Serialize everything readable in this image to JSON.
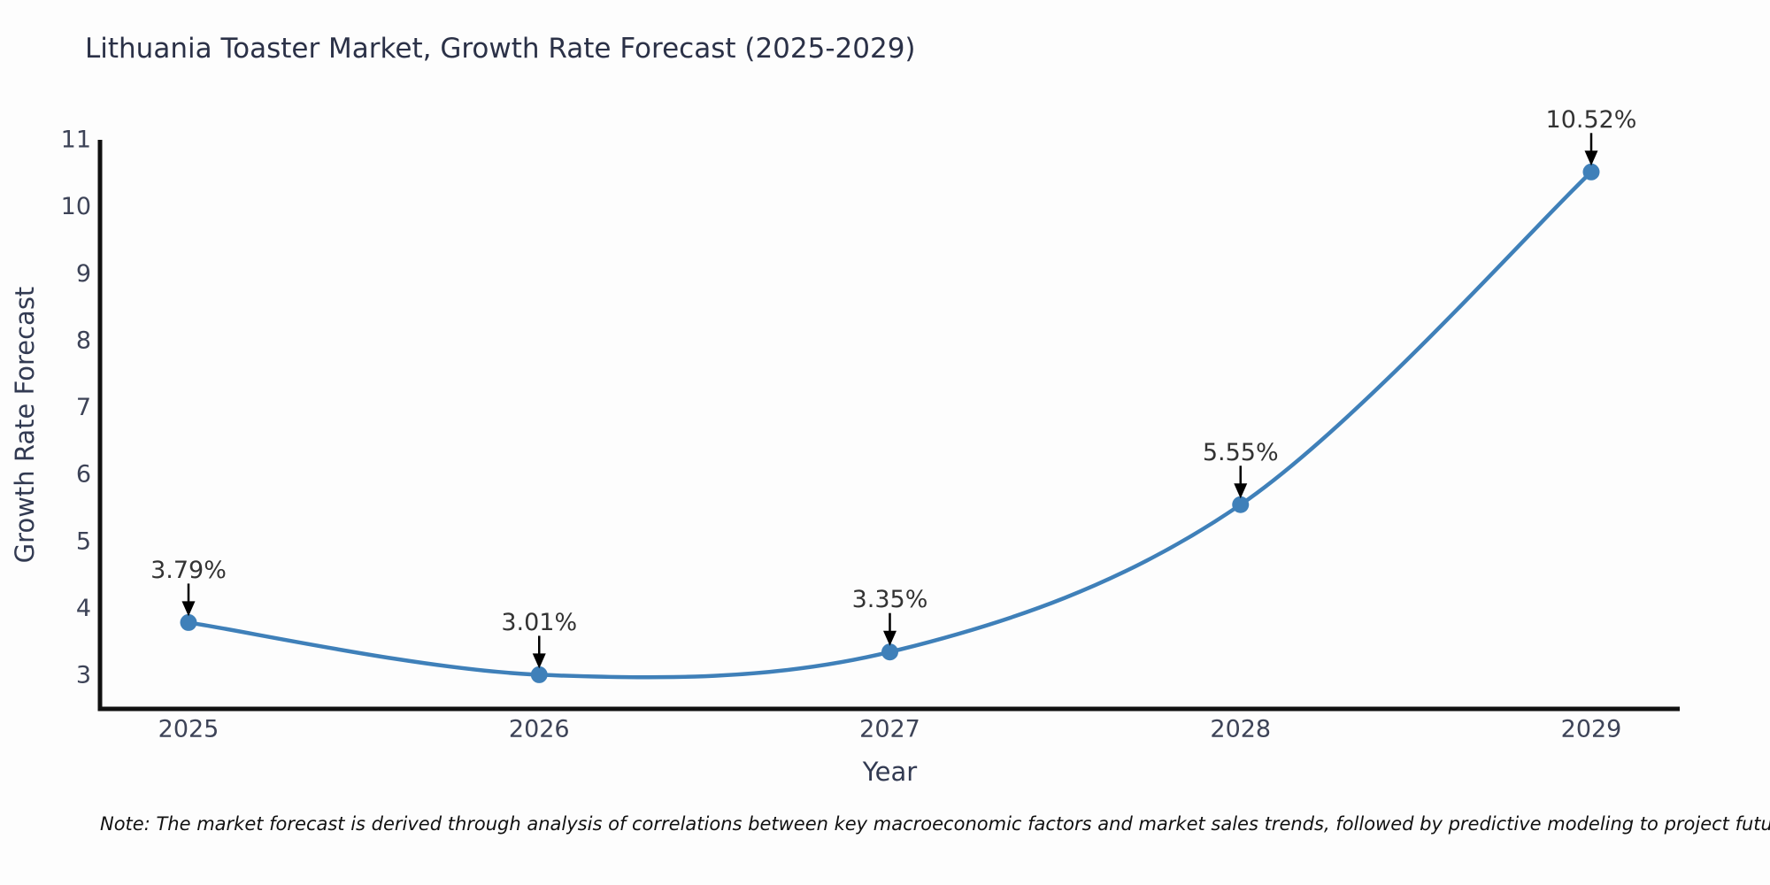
{
  "chart_data": {
    "type": "line",
    "title": "Lithuania Toaster Market, Growth Rate Forecast (2025-2029)",
    "xlabel": "Year",
    "ylabel": "Growth Rate Forecast",
    "categories": [
      "2025",
      "2026",
      "2027",
      "2028",
      "2029"
    ],
    "series": [
      {
        "name": "Growth Rate Forecast",
        "values": [
          3.79,
          3.01,
          3.35,
          5.55,
          10.52
        ]
      }
    ],
    "annotations": [
      "3.79%",
      "3.01%",
      "3.35%",
      "5.55%",
      "10.52%"
    ],
    "yticks": [
      3,
      4,
      5,
      6,
      7,
      8,
      9,
      10,
      11
    ],
    "ylim": [
      2.5,
      11.0
    ],
    "grid": false,
    "legend_position": "none",
    "colors": {
      "line": "#3f80b9",
      "marker": "#3f80b9",
      "axis": "#111111",
      "tick_label": "#3d4357",
      "annotation_text": "#333333",
      "arrow": "#000000",
      "title": "#2b3147",
      "background": "#fdfdfd"
    }
  },
  "note": {
    "text": "Note: The market forecast is derived through analysis of correlations between key macroeconomic factors and market sales trends, followed by predictive modeling to project future sales"
  }
}
